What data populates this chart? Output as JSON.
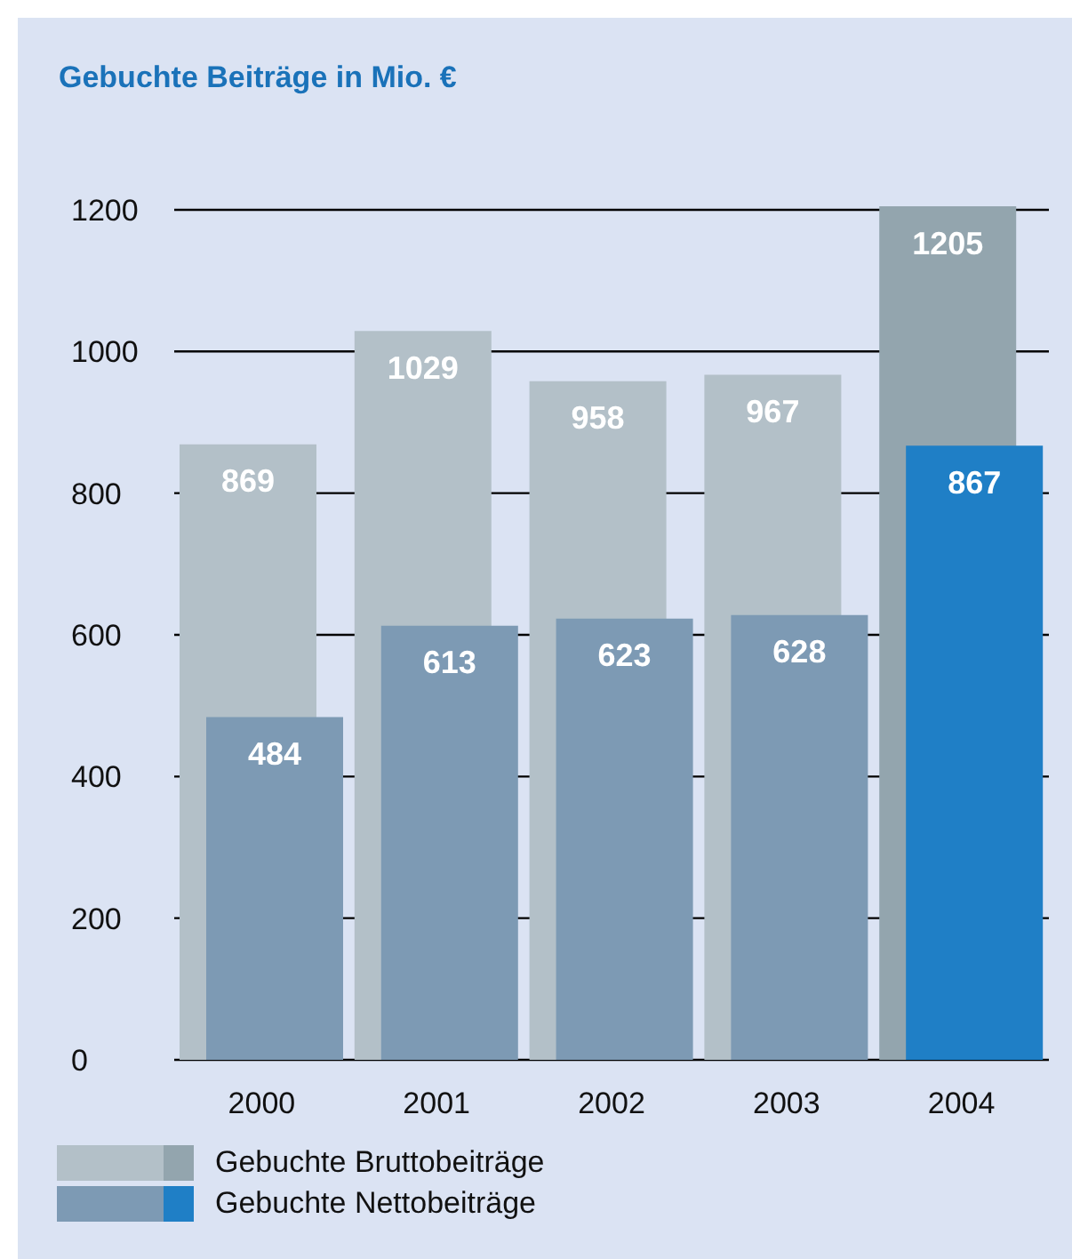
{
  "chart_data": {
    "type": "bar",
    "title": "Gebuchte Beiträge in Mio. €",
    "categories": [
      "2000",
      "2001",
      "2002",
      "2003",
      "2004"
    ],
    "series": [
      {
        "name": "Gebuchte Bruttobeiträge",
        "color": "#b3c0c8",
        "colors": [
          "#b3c0c8",
          "#b3c0c8",
          "#b3c0c8",
          "#b3c0c8",
          "#93a5ae"
        ],
        "values": [
          869,
          1029,
          958,
          967,
          1205
        ]
      },
      {
        "name": "Gebuchte Nettobeiträge",
        "color": "#7d9ab4",
        "colors": [
          "#7d9ab4",
          "#7d9ab4",
          "#7d9ab4",
          "#7d9ab4",
          "#1f7fc6"
        ],
        "values": [
          484,
          613,
          623,
          628,
          867
        ]
      }
    ],
    "ylim": [
      0,
      1205
    ],
    "yticks": [
      0,
      200,
      400,
      600,
      800,
      1000,
      1200
    ],
    "grid": "y",
    "data_labels": true,
    "legend": "bottom"
  }
}
